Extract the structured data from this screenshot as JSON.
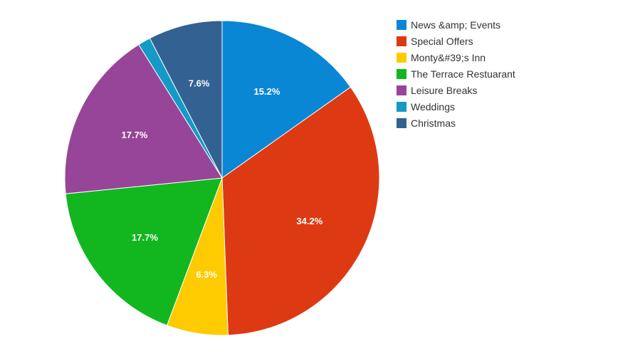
{
  "chart_data": {
    "type": "pie",
    "title": "",
    "series": [
      {
        "name": "News &amp; Events",
        "value": 15.2,
        "label": "15.2%",
        "color": "#0a87d4"
      },
      {
        "name": "Special Offers",
        "value": 34.2,
        "label": "34.2%",
        "color": "#dd3a13"
      },
      {
        "name": "Monty&#39;s Inn",
        "value": 6.3,
        "label": "6.3%",
        "color": "#fecb00"
      },
      {
        "name": "The Terrace Restuarant",
        "value": 17.7,
        "label": "17.7%",
        "color": "#12b71f"
      },
      {
        "name": "Leisure Breaks",
        "value": 17.7,
        "label": "17.7%",
        "color": "#974598"
      },
      {
        "name": "Weddings",
        "value": 1.3,
        "label": "",
        "color": "#149ac6"
      },
      {
        "name": "Christmas",
        "value": 7.6,
        "label": "7.6%",
        "color": "#336192"
      }
    ],
    "start_angle_deg": 0,
    "direction": "clockwise",
    "legend_position": "right"
  }
}
